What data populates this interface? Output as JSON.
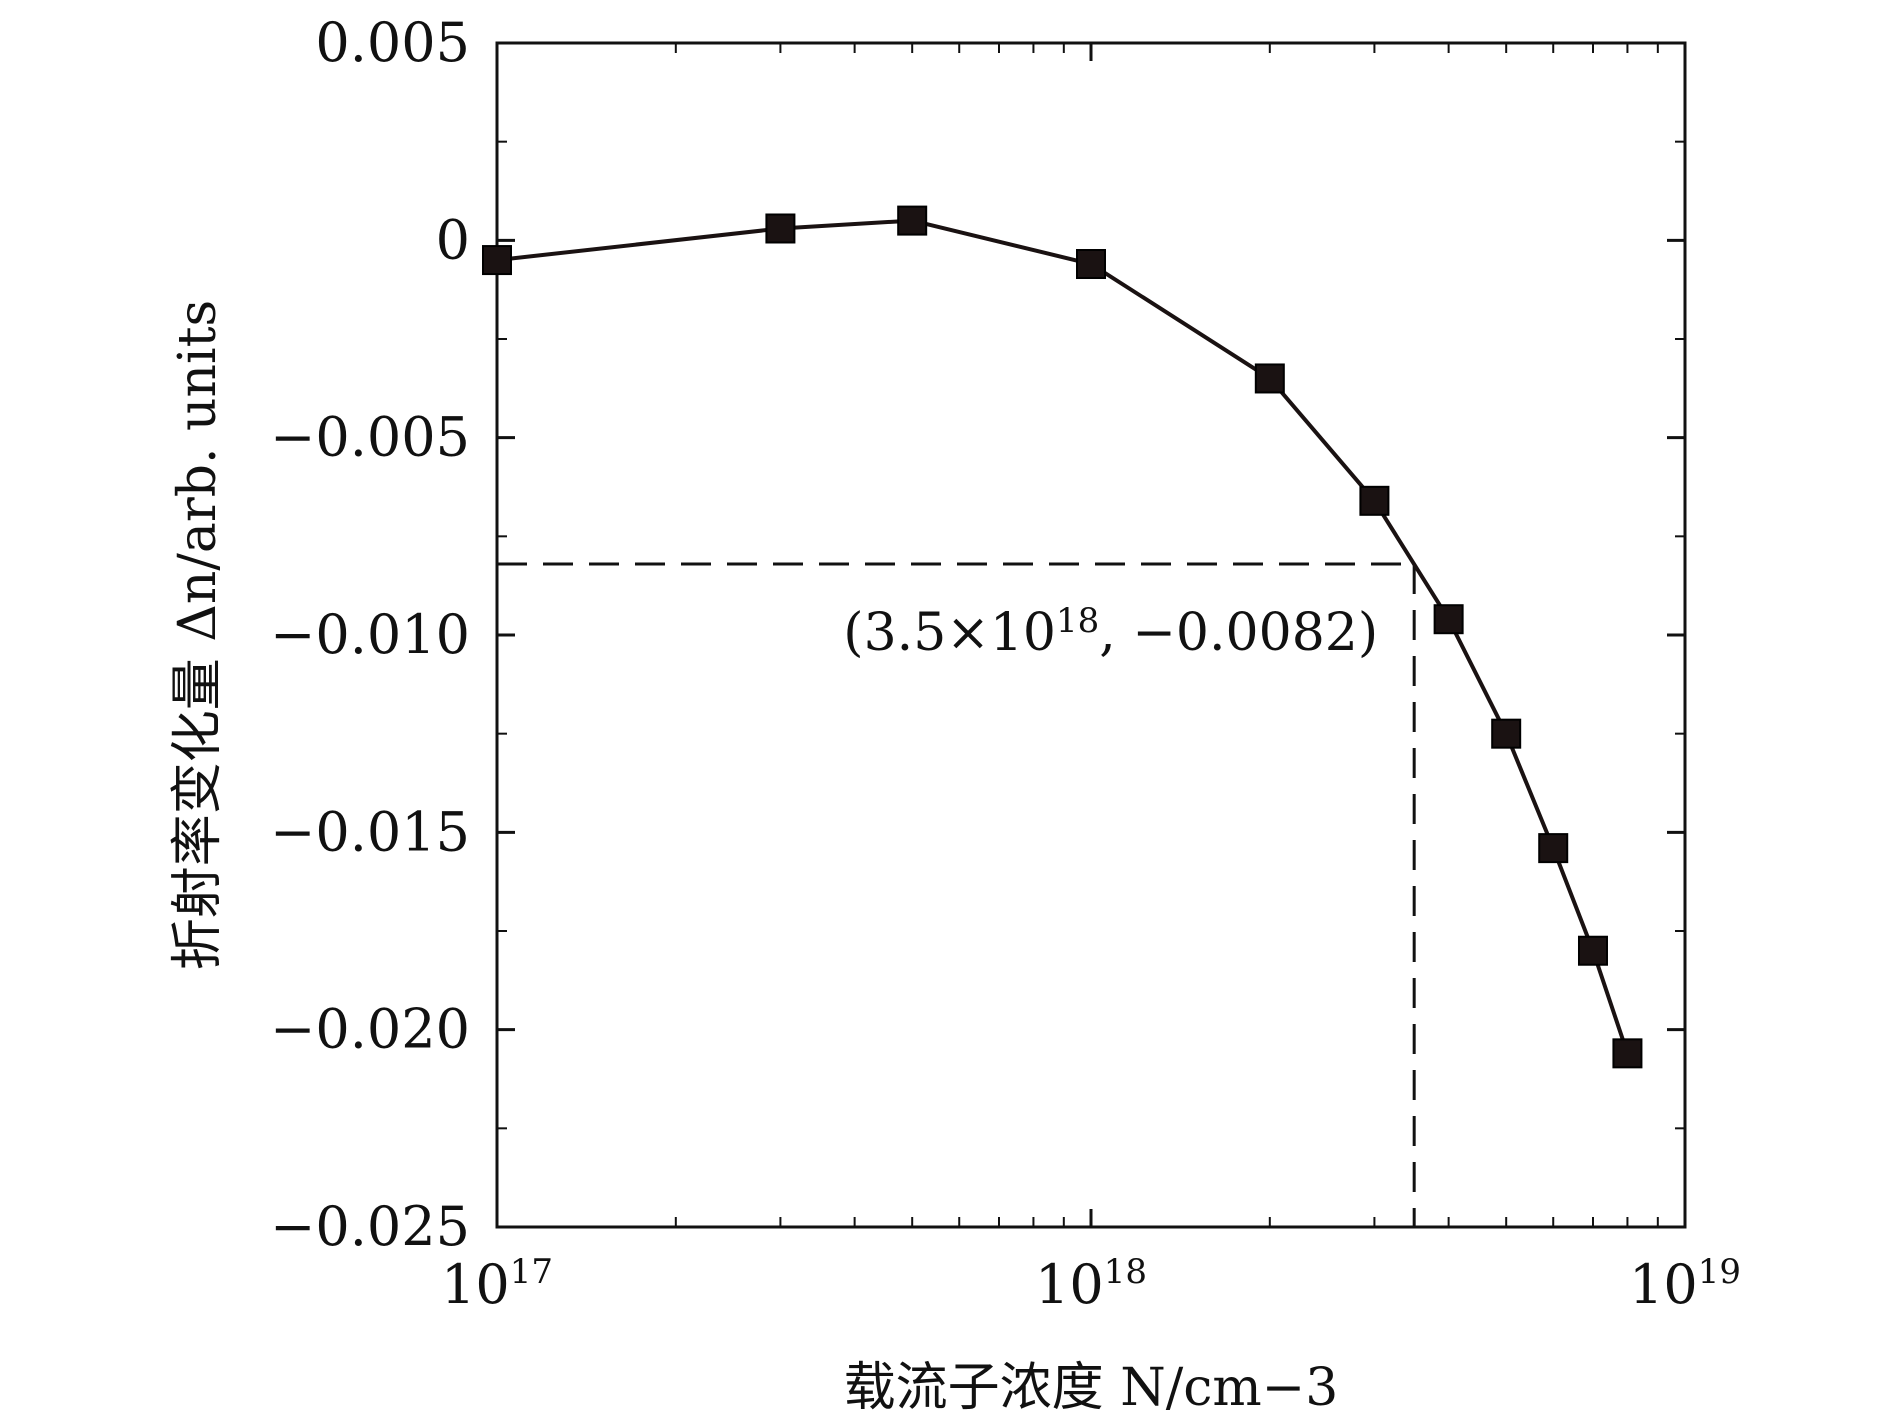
{
  "chart_data": {
    "type": "line",
    "xlabel": "载流子浓度 N/cm−3",
    "ylabel": "折射率变化量 Δn/arb. units",
    "x_scale": "log",
    "xlim": [
      1e+17,
      1e+19
    ],
    "ylim": [
      -0.025,
      0.005
    ],
    "x_ticks": [
      {
        "value": 1e+17,
        "label_base": "10",
        "label_exp": "17"
      },
      {
        "value": 1e+18,
        "label_base": "10",
        "label_exp": "18"
      },
      {
        "value": 1e+19,
        "label_base": "10",
        "label_exp": "19"
      }
    ],
    "y_ticks": [
      {
        "value": 0.005,
        "label": "0.005"
      },
      {
        "value": 0,
        "label": "0"
      },
      {
        "value": -0.005,
        "label": "−0.005"
      },
      {
        "value": -0.01,
        "label": "−0.010"
      },
      {
        "value": -0.015,
        "label": "−0.015"
      },
      {
        "value": -0.02,
        "label": "−0.020"
      },
      {
        "value": -0.025,
        "label": "−0.025"
      }
    ],
    "series": [
      {
        "marker": "square",
        "color": "#1a1212",
        "points": [
          {
            "x": 1e+17,
            "y": -0.0005
          },
          {
            "x": 3e+17,
            "y": 0.0003
          },
          {
            "x": 5e+17,
            "y": 0.0005
          },
          {
            "x": 1e+18,
            "y": -0.0006
          },
          {
            "x": 2e+18,
            "y": -0.0035
          },
          {
            "x": 3e+18,
            "y": -0.0066
          },
          {
            "x": 4e+18,
            "y": -0.0096
          },
          {
            "x": 5e+18,
            "y": -0.0125
          },
          {
            "x": 6e+18,
            "y": -0.0154
          },
          {
            "x": 7e+18,
            "y": -0.018
          },
          {
            "x": 8e+18,
            "y": -0.0206
          }
        ]
      }
    ],
    "annotation": {
      "x": 3.5e+18,
      "y": -0.0082,
      "text_prefix": "(3.5×10",
      "text_exp": "18",
      "text_suffix": ", −0.0082)"
    },
    "grid": false,
    "legend": "none"
  }
}
